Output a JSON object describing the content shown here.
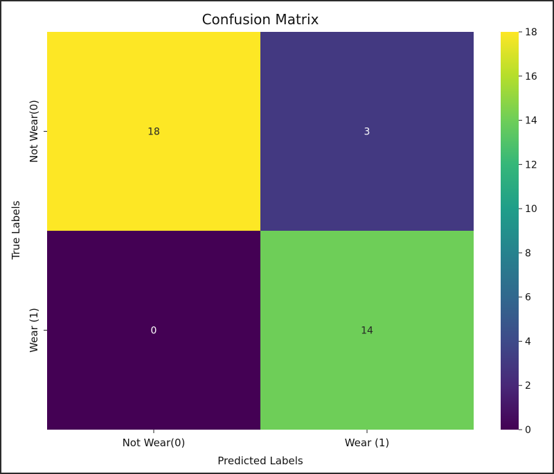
{
  "chart_data": {
    "type": "heatmap",
    "title": "Confusion Matrix",
    "xlabel": "Predicted Labels",
    "ylabel": "True Labels",
    "x_categories": [
      "Not Wear(0)",
      "Wear (1)"
    ],
    "y_categories": [
      "Not Wear(0)",
      "Wear (1)"
    ],
    "values": [
      [
        18,
        3
      ],
      [
        0,
        14
      ]
    ],
    "colormap": "viridis",
    "colorbar": {
      "min": 0,
      "max": 18,
      "ticks": [
        0,
        2,
        4,
        6,
        8,
        10,
        12,
        14,
        16,
        18
      ]
    },
    "annotations": true
  }
}
